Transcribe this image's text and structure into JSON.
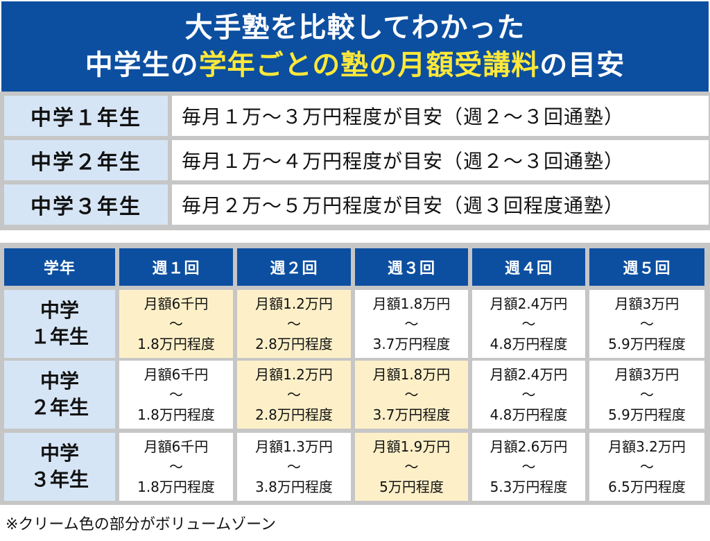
{
  "header": {
    "line1": "大手塾を比較してわかった",
    "line2_prefix": "中学生の",
    "line2_highlight": "学年ごとの塾の月額受講料",
    "line2_suffix": "の目安"
  },
  "summary": [
    {
      "label": "中学１年生",
      "value": "毎月１万～３万円程度が目安（週２～３回通塾）"
    },
    {
      "label": "中学２年生",
      "value": "毎月１万～４万円程度が目安（週２～３回通塾）"
    },
    {
      "label": "中学３年生",
      "value": "毎月２万～５万円程度が目安（週３回程度通塾）"
    }
  ],
  "table": {
    "headers": [
      "学年",
      "週１回",
      "週２回",
      "週３回",
      "週４回",
      "週５回"
    ],
    "rows": [
      {
        "grade_top": "中学",
        "grade_bottom": "１年生",
        "cells": [
          {
            "top": "月額6千円",
            "mid": "～",
            "bottom": "1.8万円程度",
            "volume_zone": true
          },
          {
            "top": "月額1.2万円",
            "mid": "～",
            "bottom": "2.8万円程度",
            "volume_zone": true
          },
          {
            "top": "月額1.8万円",
            "mid": "～",
            "bottom": "3.7万円程度",
            "volume_zone": false
          },
          {
            "top": "月額2.4万円",
            "mid": "～",
            "bottom": "4.8万円程度",
            "volume_zone": false
          },
          {
            "top": "月額3万円",
            "mid": "～",
            "bottom": "5.9万円程度",
            "volume_zone": false
          }
        ]
      },
      {
        "grade_top": "中学",
        "grade_bottom": "２年生",
        "cells": [
          {
            "top": "月額6千円",
            "mid": "～",
            "bottom": "1.8万円程度",
            "volume_zone": false
          },
          {
            "top": "月額1.2万円",
            "mid": "～",
            "bottom": "2.8万円程度",
            "volume_zone": true
          },
          {
            "top": "月額1.8万円",
            "mid": "～",
            "bottom": "3.7万円程度",
            "volume_zone": true
          },
          {
            "top": "月額2.4万円",
            "mid": "～",
            "bottom": "4.8万円程度",
            "volume_zone": false
          },
          {
            "top": "月額3万円",
            "mid": "～",
            "bottom": "5.9万円程度",
            "volume_zone": false
          }
        ]
      },
      {
        "grade_top": "中学",
        "grade_bottom": "３年生",
        "cells": [
          {
            "top": "月額6千円",
            "mid": "～",
            "bottom": "1.8万円程度",
            "volume_zone": false
          },
          {
            "top": "月額1.3万円",
            "mid": "～",
            "bottom": "3.8万円程度",
            "volume_zone": false
          },
          {
            "top": "月額1.9万円",
            "mid": "～",
            "bottom": "5万円程度",
            "volume_zone": true
          },
          {
            "top": "月額2.6万円",
            "mid": "～",
            "bottom": "5.3万円程度",
            "volume_zone": false
          },
          {
            "top": "月額3.2万円",
            "mid": "～",
            "bottom": "6.5万円程度",
            "volume_zone": false
          }
        ]
      }
    ]
  },
  "note": "※クリーム色の部分がボリュームゾーン",
  "colors": {
    "header_blue": "#0c4fa0",
    "highlight_yellow": "#ffe83a",
    "label_blue": "#d6e5f5",
    "cream": "#fdf0c8",
    "border_gray": "#c6c6c6"
  }
}
